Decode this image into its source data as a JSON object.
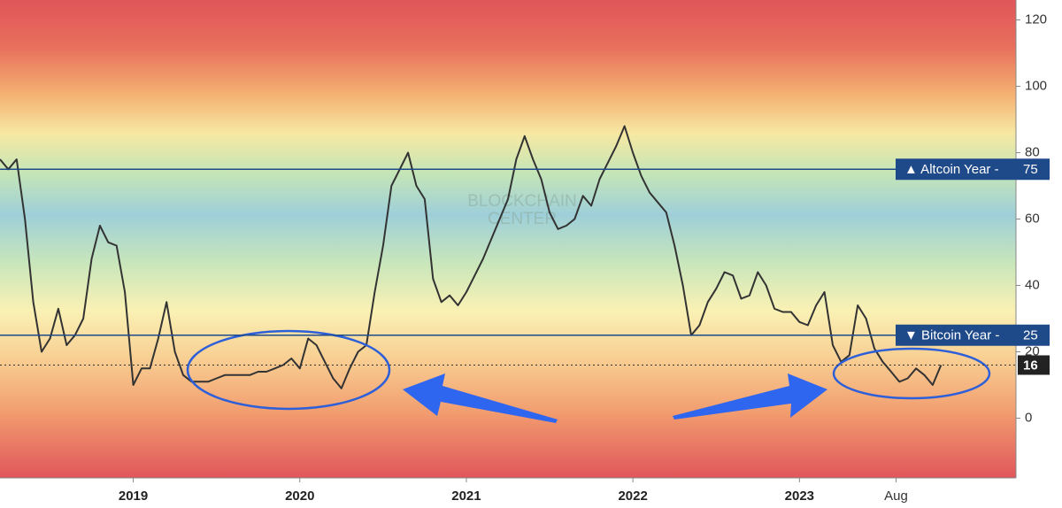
{
  "chart_data": {
    "type": "line",
    "color": "#333333",
    "watermark": [
      "BLOCKCHAIN",
      "CENTER"
    ],
    "x": [
      2018.2,
      2018.25,
      2018.3,
      2018.35,
      2018.4,
      2018.45,
      2018.5,
      2018.55,
      2018.6,
      2018.65,
      2018.7,
      2018.75,
      2018.8,
      2018.85,
      2018.9,
      2018.95,
      2019.0,
      2019.05,
      2019.1,
      2019.15,
      2019.2,
      2019.25,
      2019.3,
      2019.35,
      2019.4,
      2019.45,
      2019.5,
      2019.55,
      2019.6,
      2019.65,
      2019.7,
      2019.75,
      2019.8,
      2019.85,
      2019.9,
      2019.95,
      2020.0,
      2020.05,
      2020.1,
      2020.15,
      2020.2,
      2020.25,
      2020.3,
      2020.35,
      2020.4,
      2020.45,
      2020.5,
      2020.55,
      2020.6,
      2020.65,
      2020.7,
      2020.75,
      2020.8,
      2020.85,
      2020.9,
      2020.95,
      2021.0,
      2021.05,
      2021.1,
      2021.15,
      2021.2,
      2021.25,
      2021.3,
      2021.35,
      2021.4,
      2021.45,
      2021.5,
      2021.55,
      2021.6,
      2021.65,
      2021.7,
      2021.75,
      2021.8,
      2021.85,
      2021.9,
      2021.95,
      2022.0,
      2022.05,
      2022.1,
      2022.15,
      2022.2,
      2022.25,
      2022.3,
      2022.35,
      2022.4,
      2022.45,
      2022.5,
      2022.55,
      2022.6,
      2022.65,
      2022.7,
      2022.75,
      2022.8,
      2022.85,
      2022.9,
      2022.95,
      2023.0,
      2023.05,
      2023.1,
      2023.15,
      2023.2,
      2023.25,
      2023.3,
      2023.35,
      2023.4,
      2023.45,
      2023.5,
      2023.55,
      2023.6,
      2023.65,
      2023.7,
      2023.75,
      2023.8,
      2023.85
    ],
    "values": [
      78,
      75,
      78,
      60,
      35,
      20,
      24,
      33,
      22,
      25,
      30,
      48,
      58,
      53,
      52,
      38,
      10,
      15,
      15,
      24,
      35,
      20,
      13,
      11,
      11,
      11,
      12,
      13,
      13,
      13,
      13,
      14,
      14,
      15,
      16,
      18,
      15,
      24,
      22,
      17,
      12,
      9,
      15,
      20,
      22,
      38,
      52,
      70,
      75,
      80,
      70,
      66,
      42,
      35,
      37,
      34,
      38,
      43,
      48,
      54,
      60,
      66,
      78,
      85,
      78,
      72,
      62,
      57,
      58,
      60,
      67,
      64,
      72,
      77,
      82,
      88,
      80,
      73,
      68,
      65,
      62,
      52,
      40,
      25,
      28,
      35,
      39,
      44,
      43,
      36,
      37,
      44,
      40,
      33,
      32,
      32,
      29,
      28,
      34,
      38,
      22,
      17,
      19,
      34,
      30,
      21,
      17,
      14,
      11,
      12,
      15,
      13,
      10,
      16
    ],
    "xlim": [
      2018.2,
      2024.3
    ],
    "ylim": [
      -18,
      126
    ],
    "xticks": [
      2019,
      2020,
      2021,
      2022,
      2023,
      {
        "value": 2023.58,
        "label": "Aug"
      }
    ],
    "yticks": [
      0,
      20,
      40,
      60,
      80,
      100,
      120
    ],
    "thresholds": [
      {
        "label": "▲ Altcoin Year -",
        "value": 75,
        "color": "#1f4a8a"
      },
      {
        "label": "▼ Bitcoin Year -",
        "value": 25,
        "color": "#1f4a8a"
      }
    ],
    "current_value": 16
  }
}
